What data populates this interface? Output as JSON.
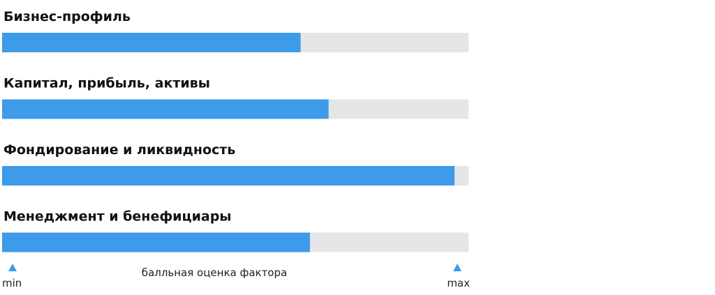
{
  "chart_data": {
    "type": "bar",
    "orientation": "horizontal",
    "categories": [
      "Бизнес-профиль",
      "Капитал, прибыль, активы",
      "Фондирование и ликвидность",
      "Менеджмент и бенефициары"
    ],
    "values": [
      64,
      70,
      97,
      66
    ],
    "color": "#3d9be9",
    "track_color": "#e6e6e6",
    "xlim": [
      0,
      100
    ],
    "x_label": "балльная оценка фактора",
    "min_label": "min",
    "max_label": "max"
  }
}
